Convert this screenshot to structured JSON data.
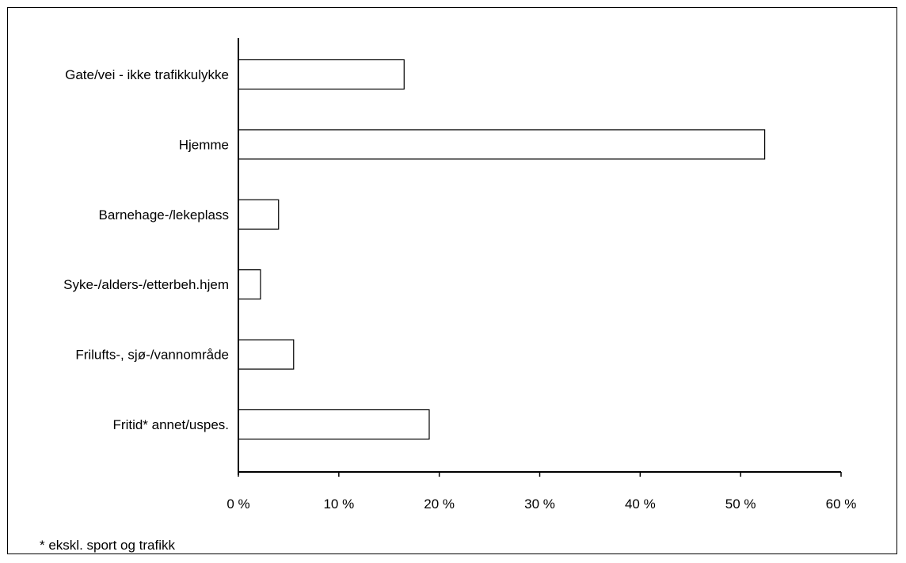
{
  "chart_data": {
    "type": "bar",
    "orientation": "horizontal",
    "categories": [
      "Gate/vei - ikke trafikkulykke",
      "Hjemme",
      "Barnehage-/lekeplass",
      "Syke-/alders-/etterbeh.hjem",
      "Frilufts-, sjø-/vannområde",
      "Fritid* annet/uspes."
    ],
    "values": [
      16.5,
      52.4,
      4.0,
      2.2,
      5.5,
      19.0
    ],
    "xlim": [
      0,
      60
    ],
    "x_ticks": [
      0,
      10,
      20,
      30,
      40,
      50,
      60
    ],
    "x_tick_labels": [
      "0 %",
      "10 %",
      "20 %",
      "30 %",
      "40 %",
      "50 %",
      "60 %"
    ],
    "bar_fill": "#ffffff",
    "bar_stroke": "#000000",
    "grid": false,
    "legend": "none"
  },
  "footnote": "* ekskl. sport og trafikk"
}
